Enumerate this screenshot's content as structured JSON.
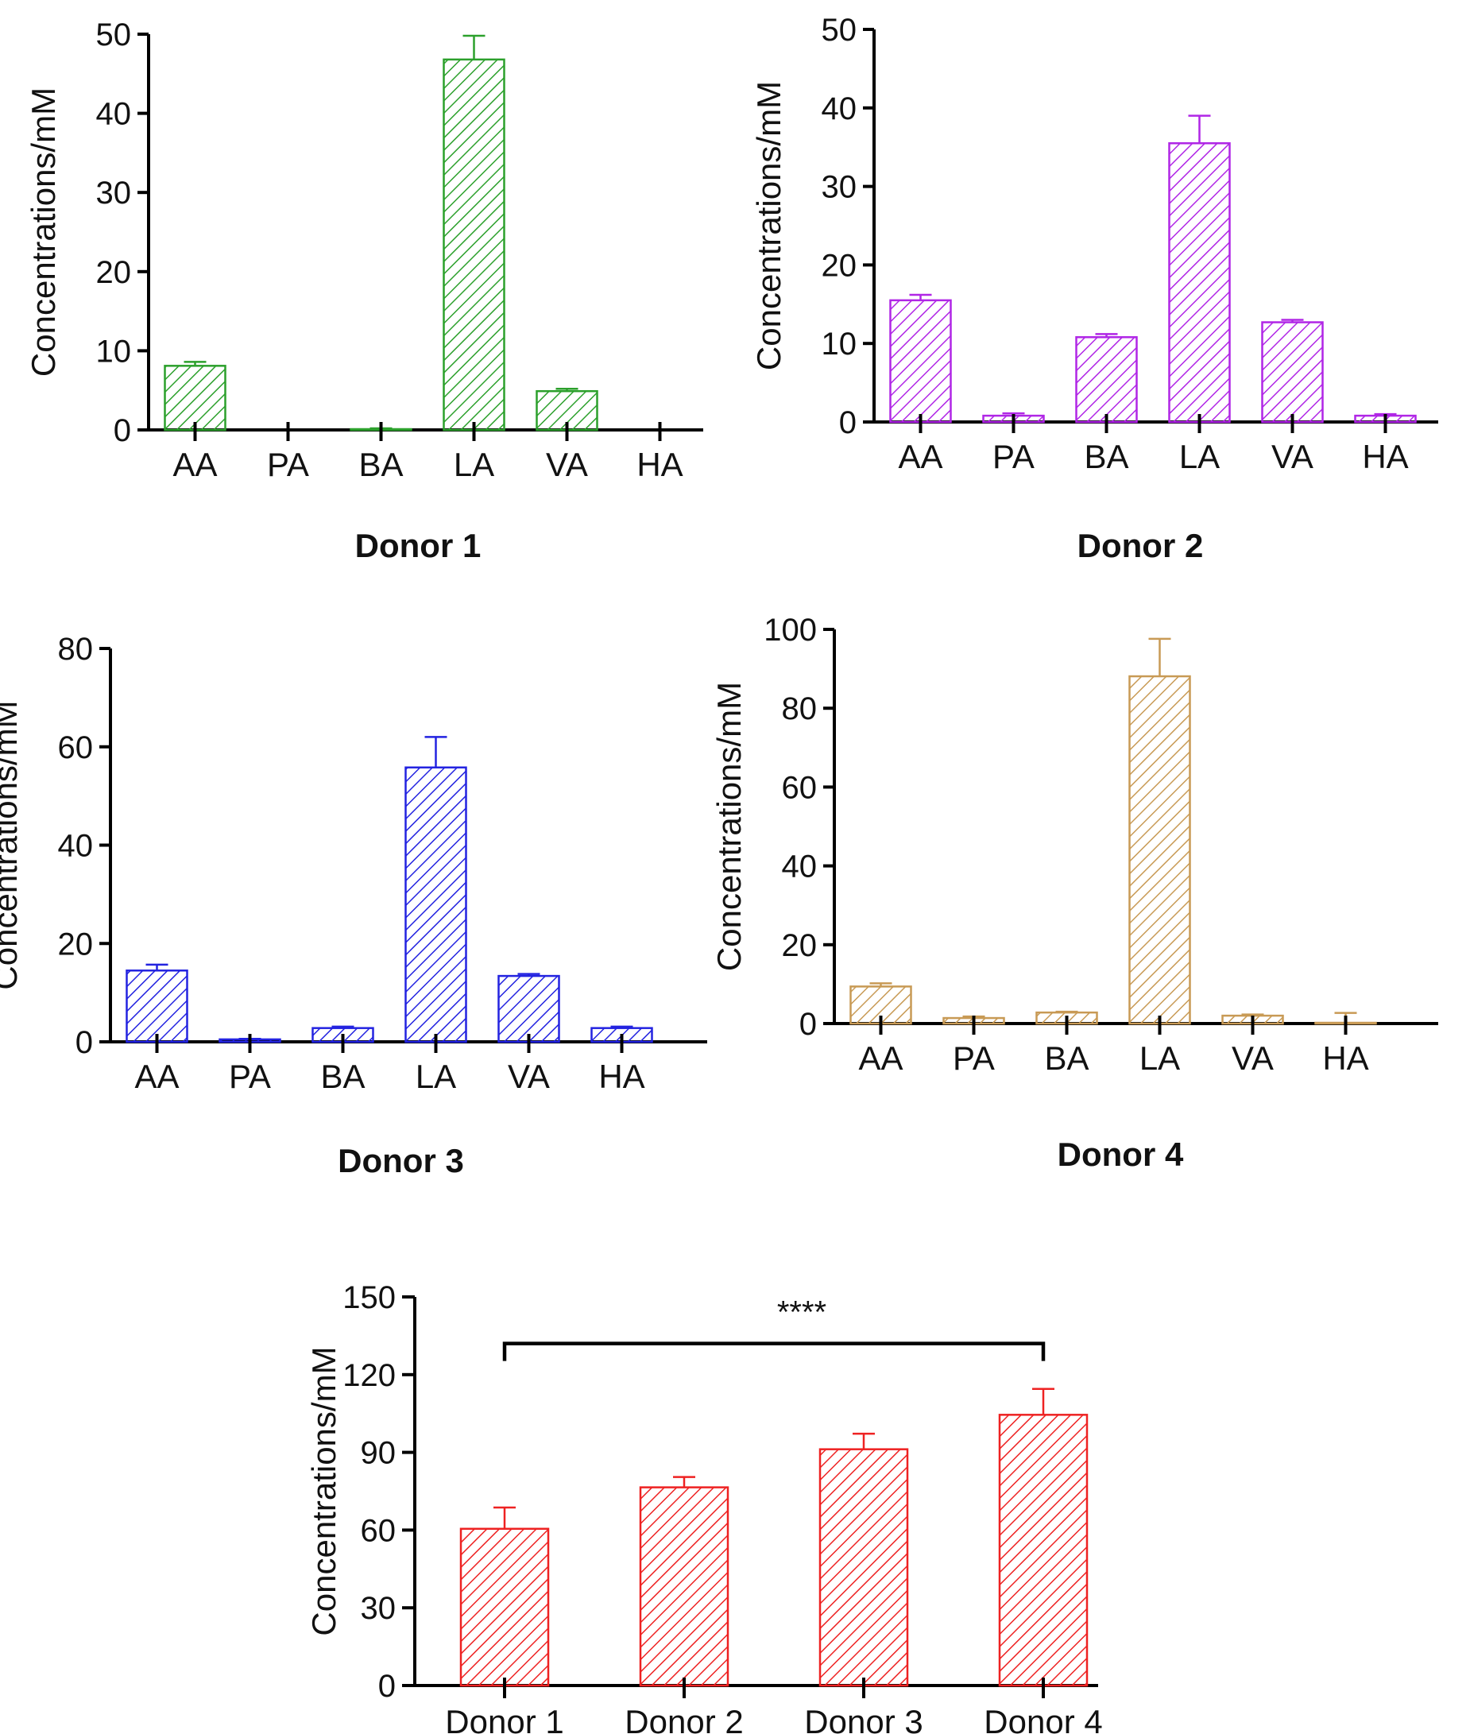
{
  "chart_data": [
    {
      "type": "bar",
      "title": "Donor 1",
      "xlabel": "",
      "ylabel": "Concentrations/mM",
      "color": "#2ca02c",
      "categories": [
        "AA",
        "PA",
        "BA",
        "LA",
        "VA",
        "HA"
      ],
      "values": [
        8.1,
        0,
        0.1,
        46.8,
        4.9,
        0
      ],
      "errors": [
        0.5,
        0,
        0.1,
        3.0,
        0.3,
        0
      ],
      "ylim": [
        0,
        50
      ],
      "yticks": [
        0,
        10,
        20,
        30,
        40,
        50
      ]
    },
    {
      "type": "bar",
      "title": "Donor 2",
      "xlabel": "",
      "ylabel": "Concentrations/mM",
      "color": "#b026e6",
      "categories": [
        "AA",
        "PA",
        "BA",
        "LA",
        "VA",
        "HA"
      ],
      "values": [
        15.5,
        0.8,
        10.8,
        35.5,
        12.7,
        0.8
      ],
      "errors": [
        0.7,
        0.3,
        0.4,
        3.5,
        0.3,
        0.2
      ],
      "ylim": [
        0,
        50
      ],
      "yticks": [
        0,
        10,
        20,
        30,
        40,
        50
      ]
    },
    {
      "type": "bar",
      "title": "Donor 3",
      "xlabel": "",
      "ylabel": "Concentrations/mM",
      "color": "#2323e0",
      "categories": [
        "AA",
        "PA",
        "BA",
        "LA",
        "VA",
        "HA"
      ],
      "values": [
        14.5,
        0.5,
        2.8,
        55.8,
        13.4,
        2.8
      ],
      "errors": [
        1.2,
        0.1,
        0.3,
        6.2,
        0.4,
        0.3
      ],
      "ylim": [
        0,
        80
      ],
      "yticks": [
        0,
        20,
        40,
        60,
        80
      ]
    },
    {
      "type": "bar",
      "title": "Donor 4",
      "xlabel": "",
      "ylabel": "Concentrations/mM",
      "color": "#c89a55",
      "categories": [
        "AA",
        "PA",
        "BA",
        "LA",
        "VA",
        "HA"
      ],
      "values": [
        9.4,
        1.4,
        2.8,
        88.1,
        2.0,
        0.2
      ],
      "errors": [
        0.8,
        0.4,
        0.2,
        9.5,
        0.3,
        2.5
      ],
      "ylim": [
        0,
        100
      ],
      "yticks": [
        0,
        20,
        40,
        60,
        80,
        100
      ]
    },
    {
      "type": "bar",
      "title": "",
      "xlabel": "",
      "ylabel": "Concentrations/mM",
      "color": "#ee2222",
      "categories": [
        "Donor 1",
        "Donor 2",
        "Donor 3",
        "Donor 4"
      ],
      "values": [
        60.5,
        76.5,
        91.2,
        104.5
      ],
      "errors": [
        8.2,
        4.0,
        6.0,
        10.0
      ],
      "ylim": [
        0,
        150
      ],
      "yticks": [
        0,
        30,
        60,
        90,
        120,
        150
      ],
      "annotation": {
        "text": "****",
        "from": "Donor 1",
        "to": "Donor 4",
        "y": 132
      }
    }
  ]
}
